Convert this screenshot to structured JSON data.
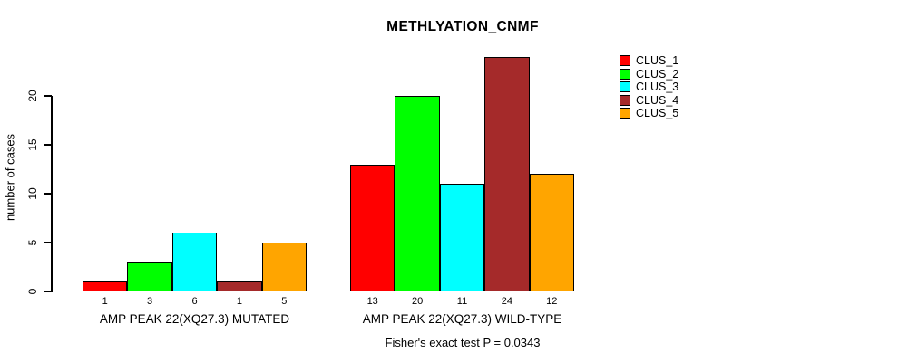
{
  "chart_data": {
    "type": "bar",
    "title": "METHLYATION_CNMF",
    "ylabel": "number of cases",
    "xlabel": "",
    "categories": [
      "AMP PEAK 22(XQ27.3) MUTATED",
      "AMP PEAK 22(XQ27.3) WILD-TYPE"
    ],
    "series": [
      {
        "name": "CLUS_1",
        "color": "#FF0000",
        "values": [
          1,
          13
        ]
      },
      {
        "name": "CLUS_2",
        "color": "#00FF00",
        "values": [
          3,
          20
        ]
      },
      {
        "name": "CLUS_3",
        "color": "#00FFFF",
        "values": [
          6,
          11
        ]
      },
      {
        "name": "CLUS_4",
        "color": "#A52A2A",
        "values": [
          1,
          24
        ]
      },
      {
        "name": "CLUS_5",
        "color": "#FFA500",
        "values": [
          5,
          12
        ]
      }
    ],
    "yticks": [
      0,
      5,
      10,
      15,
      20
    ],
    "ylim": [
      0,
      24
    ],
    "grid": false,
    "legend_position": "right",
    "annotation": "Fisher's exact test P = 0.0343"
  }
}
